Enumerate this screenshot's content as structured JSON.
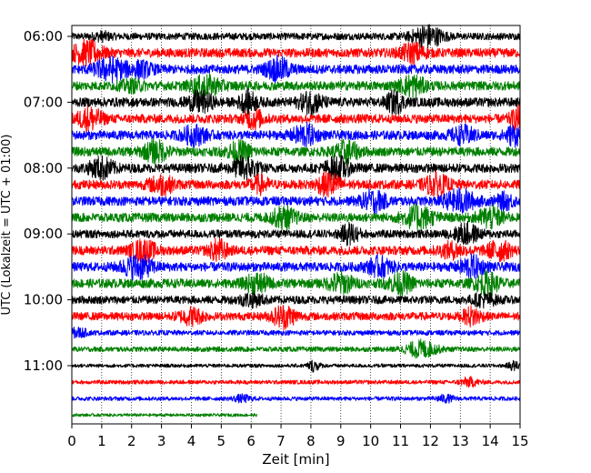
{
  "chart_data": {
    "type": "line",
    "title": "",
    "xlabel": "Zeit  [min]",
    "ylabel": "UTC (Lokalzeit = UTC + 01:00)",
    "xlim": [
      0,
      15
    ],
    "x_ticks": [
      "0",
      "1",
      "2",
      "3",
      "4",
      "5",
      "6",
      "7",
      "8",
      "9",
      "10",
      "11",
      "12",
      "13",
      "14",
      "15"
    ],
    "y_tick_labels": [
      "06:00",
      "07:00",
      "08:00",
      "09:00",
      "10:00",
      "11:00"
    ],
    "trace_interval_min": 15,
    "start_time": "06:00",
    "last_trace_end_min": 6.2,
    "grid": "vertical-dotted",
    "series_color_cycle": [
      "#000000",
      "#ff0000",
      "#0000ff",
      "#008000"
    ],
    "traces": [
      {
        "time": "06:00",
        "amp": 0.35,
        "events": [
          [
            11.9,
            1.0,
            0.5
          ],
          [
            1.0,
            0.3,
            0.3
          ]
        ]
      },
      {
        "time": "06:15",
        "amp": 0.45,
        "events": [
          [
            0.5,
            1.0,
            0.5
          ],
          [
            11.4,
            0.8,
            0.4
          ]
        ]
      },
      {
        "time": "06:30",
        "amp": 0.45,
        "events": [
          [
            1.3,
            1.0,
            0.5
          ],
          [
            6.9,
            1.0,
            0.4
          ],
          [
            2.3,
            0.6,
            0.4
          ]
        ]
      },
      {
        "time": "06:45",
        "amp": 0.45,
        "events": [
          [
            4.5,
            0.8,
            0.5
          ],
          [
            11.4,
            0.9,
            0.4
          ],
          [
            2.0,
            0.4,
            0.4
          ]
        ]
      },
      {
        "time": "07:00",
        "amp": 0.45,
        "events": [
          [
            4.3,
            0.9,
            0.4
          ],
          [
            5.9,
            0.9,
            0.3
          ],
          [
            8.0,
            0.9,
            0.4
          ],
          [
            10.8,
            0.9,
            0.3
          ]
        ]
      },
      {
        "time": "07:15",
        "amp": 0.45,
        "events": [
          [
            0.6,
            1.0,
            0.4
          ],
          [
            6.1,
            0.8,
            0.3
          ],
          [
            15.0,
            1.0,
            0.3
          ]
        ]
      },
      {
        "time": "07:30",
        "amp": 0.45,
        "events": [
          [
            4.1,
            0.8,
            0.4
          ],
          [
            7.8,
            0.9,
            0.4
          ],
          [
            13.1,
            0.7,
            0.4
          ],
          [
            14.8,
            0.8,
            0.3
          ]
        ]
      },
      {
        "time": "07:45",
        "amp": 0.45,
        "events": [
          [
            2.8,
            0.9,
            0.4
          ],
          [
            5.6,
            0.8,
            0.4
          ],
          [
            9.2,
            0.9,
            0.4
          ]
        ]
      },
      {
        "time": "08:00",
        "amp": 0.45,
        "events": [
          [
            1.0,
            0.9,
            0.4
          ],
          [
            5.8,
            1.0,
            0.4
          ],
          [
            8.9,
            1.0,
            0.4
          ]
        ]
      },
      {
        "time": "08:15",
        "amp": 0.45,
        "events": [
          [
            3.0,
            0.8,
            0.4
          ],
          [
            8.6,
            1.0,
            0.4
          ],
          [
            12.2,
            0.9,
            0.4
          ],
          [
            6.3,
            0.7,
            0.3
          ]
        ]
      },
      {
        "time": "08:30",
        "amp": 0.45,
        "events": [
          [
            10.1,
            0.9,
            0.4
          ],
          [
            13.0,
            1.0,
            0.5
          ],
          [
            14.5,
            0.6,
            0.3
          ]
        ]
      },
      {
        "time": "08:45",
        "amp": 0.45,
        "events": [
          [
            7.1,
            0.9,
            0.4
          ],
          [
            11.6,
            1.0,
            0.5
          ],
          [
            14.0,
            0.9,
            0.4
          ]
        ]
      },
      {
        "time": "09:00",
        "amp": 0.4,
        "events": [
          [
            9.3,
            0.9,
            0.3
          ],
          [
            13.2,
            0.9,
            0.4
          ]
        ]
      },
      {
        "time": "09:15",
        "amp": 0.45,
        "events": [
          [
            2.4,
            0.9,
            0.4
          ],
          [
            4.9,
            0.9,
            0.3
          ],
          [
            14.3,
            0.8,
            0.4
          ],
          [
            12.7,
            0.6,
            0.4
          ]
        ]
      },
      {
        "time": "09:30",
        "amp": 0.45,
        "events": [
          [
            2.2,
            1.0,
            0.5
          ],
          [
            10.3,
            0.8,
            0.4
          ],
          [
            13.4,
            0.9,
            0.4
          ]
        ]
      },
      {
        "time": "09:45",
        "amp": 0.45,
        "events": [
          [
            6.2,
            0.8,
            0.4
          ],
          [
            9.0,
            0.9,
            0.4
          ],
          [
            11.0,
            0.9,
            0.4
          ],
          [
            13.9,
            0.9,
            0.4
          ]
        ]
      },
      {
        "time": "10:00",
        "amp": 0.4,
        "events": [
          [
            6.0,
            0.5,
            0.4
          ],
          [
            13.8,
            0.5,
            0.4
          ]
        ]
      },
      {
        "time": "10:15",
        "amp": 0.4,
        "events": [
          [
            7.1,
            1.0,
            0.4
          ],
          [
            4.0,
            0.7,
            0.4
          ],
          [
            13.4,
            0.8,
            0.3
          ]
        ]
      },
      {
        "time": "10:30",
        "amp": 0.25,
        "events": [
          [
            0.2,
            0.4,
            0.3
          ]
        ]
      },
      {
        "time": "10:45",
        "amp": 0.25,
        "events": [
          [
            11.7,
            0.8,
            0.5
          ]
        ]
      },
      {
        "time": "11:00",
        "amp": 0.18,
        "events": [
          [
            8.1,
            0.5,
            0.2
          ],
          [
            14.8,
            0.4,
            0.2
          ]
        ]
      },
      {
        "time": "11:15",
        "amp": 0.2,
        "events": [
          [
            13.3,
            0.4,
            0.3
          ]
        ]
      },
      {
        "time": "11:30",
        "amp": 0.2,
        "events": [
          [
            5.7,
            0.3,
            0.3
          ],
          [
            12.5,
            0.3,
            0.3
          ]
        ]
      },
      {
        "time": "11:45",
        "amp": 0.15,
        "events": []
      }
    ]
  }
}
